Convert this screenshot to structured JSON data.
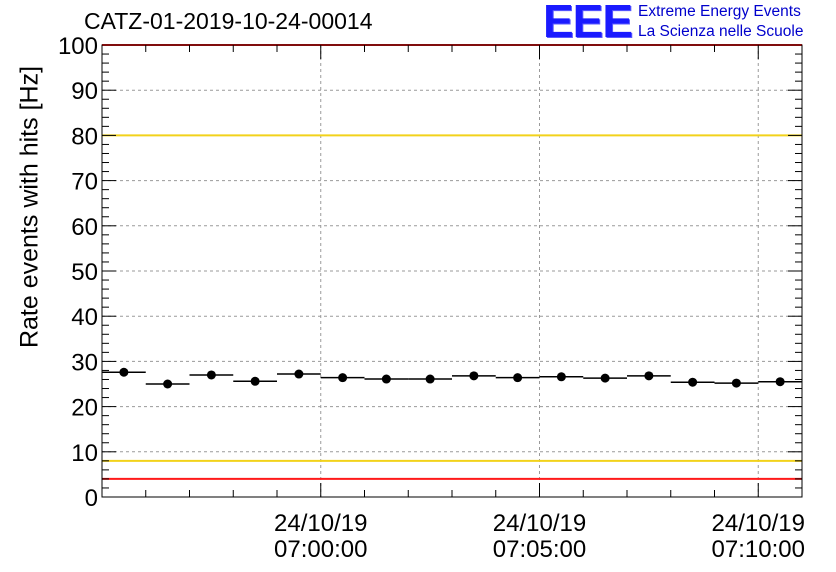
{
  "title": "CATZ-01-2019-10-24-00014",
  "logo": {
    "mark": "EEE",
    "line1": "Extreme Energy Events",
    "line2": "La Scienza nelle Scuole"
  },
  "chart_data": {
    "type": "scatter",
    "title": "CATZ-01-2019-10-24-00014",
    "xlabel": "",
    "ylabel": "Rate events with hits [Hz]",
    "ylim": [
      0,
      100
    ],
    "y_ticks": [
      "0",
      "10",
      "20",
      "30",
      "40",
      "50",
      "60",
      "70",
      "80",
      "90",
      "100"
    ],
    "xlim_minutes": [
      -5.0,
      11.0
    ],
    "x_ticks": [
      {
        "minute": 0,
        "date": "24/10/19",
        "time": "07:00:00"
      },
      {
        "minute": 5,
        "date": "24/10/19",
        "time": "07:05:00"
      },
      {
        "minute": 10,
        "date": "24/10/19",
        "time": "07:10:00"
      }
    ],
    "grid": true,
    "series": [
      {
        "x_minutes": [
          -4.5,
          -3.5,
          -2.5,
          -1.5,
          -0.5,
          0.5,
          1.5,
          2.5,
          3.5,
          4.5,
          5.5,
          6.5,
          7.5,
          8.5,
          9.5,
          10.5
        ],
        "values": [
          27.6,
          25.0,
          27.0,
          25.6,
          27.2,
          26.4,
          26.1,
          26.1,
          26.8,
          26.4,
          26.6,
          26.3,
          26.8,
          25.4,
          25.2,
          25.5
        ],
        "color": "#000000"
      }
    ],
    "reference_lines": [
      {
        "y": 80,
        "color": "#f2d21b"
      },
      {
        "y": 8,
        "color": "#f2d21b"
      },
      {
        "y": 100,
        "color": "#ff1a1a"
      },
      {
        "y": 4,
        "color": "#ff1a1a"
      }
    ]
  }
}
